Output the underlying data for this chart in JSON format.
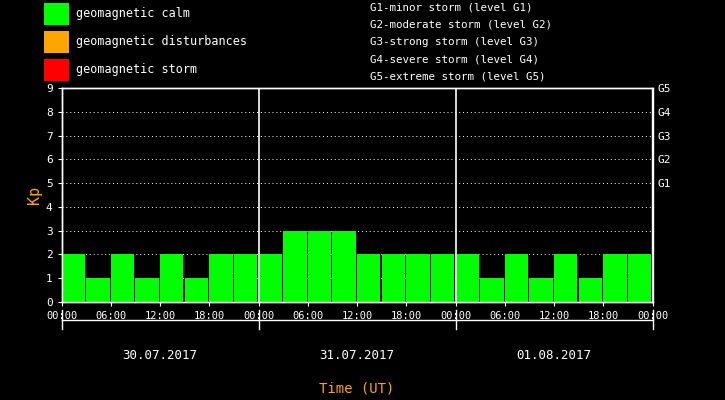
{
  "background_color": "#000000",
  "bar_color_calm": "#00ff00",
  "bar_color_disturb": "#ffa500",
  "bar_color_storm": "#ff0000",
  "text_color": "#ffffff",
  "title_color": "#ffa500",
  "kp_label_color": "#ffa500",
  "bar_values": [
    2,
    1,
    2,
    1,
    2,
    1,
    2,
    2,
    2,
    3,
    3,
    3,
    2,
    2,
    2,
    2,
    2,
    1,
    2,
    1,
    2,
    1,
    2,
    2
  ],
  "date_labels": [
    "30.07.2017",
    "31.07.2017",
    "01.08.2017"
  ],
  "xlabel": "Time (UT)",
  "ylabel": "Kp",
  "ylim": [
    0,
    9
  ],
  "yticks": [
    0,
    1,
    2,
    3,
    4,
    5,
    6,
    7,
    8,
    9
  ],
  "g_labels": [
    "G1",
    "G2",
    "G3",
    "G4",
    "G5"
  ],
  "g_levels": [
    5,
    6,
    7,
    8,
    9
  ],
  "legend_calm": "geomagnetic calm",
  "legend_disturb": "geomagnetic disturbances",
  "legend_storm": "geomagnetic storm",
  "storm_labels": [
    "G1-minor storm (level G1)",
    "G2-moderate storm (level G2)",
    "G3-strong storm (level G3)",
    "G4-severe storm (level G4)",
    "G5-extreme storm (level G5)"
  ],
  "n_days": 3,
  "bars_per_day": 8,
  "interval_hours": 3
}
